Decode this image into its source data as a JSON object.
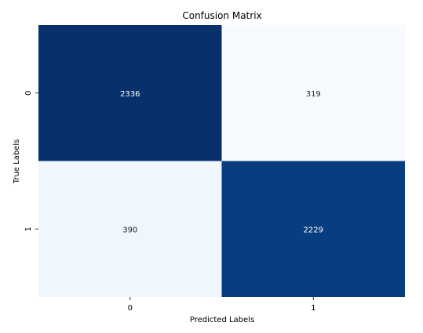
{
  "chart_data": {
    "type": "heatmap",
    "title": "Confusion Matrix",
    "xlabel": "Predicted Labels",
    "ylabel": "True Labels",
    "x_categories": [
      "0",
      "1"
    ],
    "y_categories": [
      "0",
      "1"
    ],
    "values": [
      [
        2336,
        319
      ],
      [
        390,
        2229
      ]
    ],
    "colormap": "Blues",
    "color_min": "#f7fbff",
    "color_max": "#08306b",
    "colorbar": false,
    "annotations": true
  }
}
